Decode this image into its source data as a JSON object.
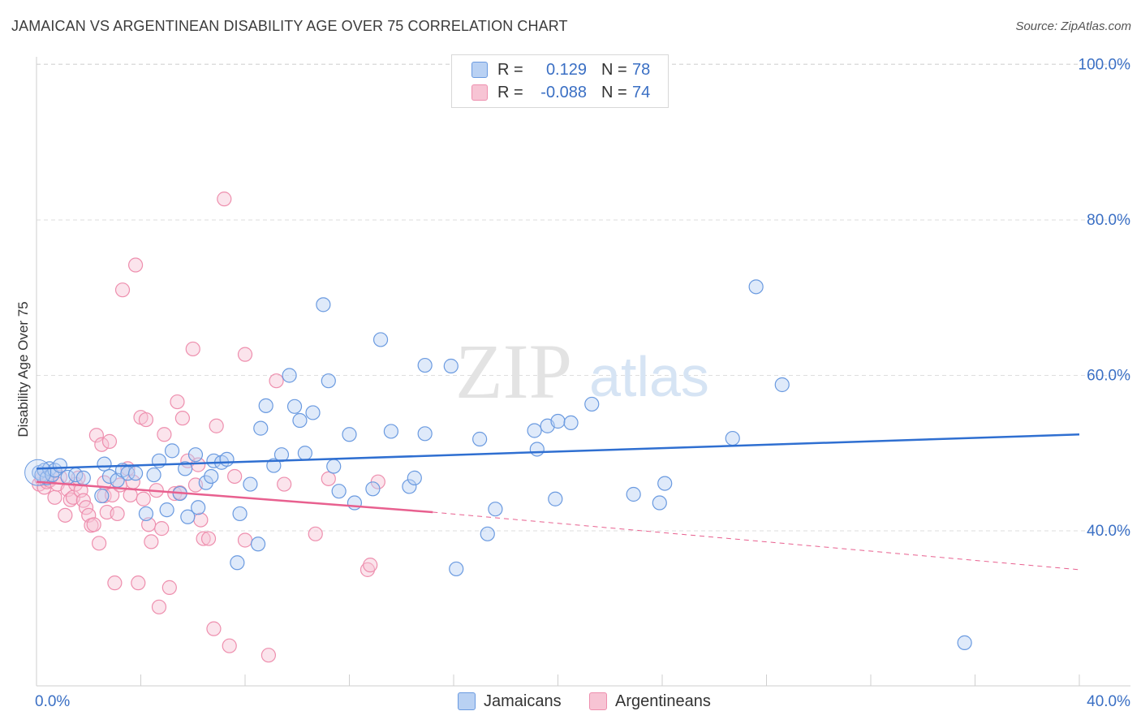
{
  "header": {
    "title": "JAMAICAN VS ARGENTINEAN DISABILITY AGE OVER 75 CORRELATION CHART",
    "source": "Source: ZipAtlas.com"
  },
  "watermark": {
    "zip": "ZIP",
    "atlas": "atlas"
  },
  "colors": {
    "blue_fill": "#b9d1f3",
    "blue_stroke": "#6a9ae0",
    "blue_line": "#2f6fd1",
    "pink_fill": "#f7c4d4",
    "pink_stroke": "#ee8fae",
    "pink_line": "#e8608f",
    "axis_text": "#3a6fc4",
    "grid": "#dedede"
  },
  "legend": {
    "rows": [
      {
        "label": "R =",
        "r": "0.129",
        "n_label": "N =",
        "n": "78"
      },
      {
        "label": "R =",
        "r": "-0.088",
        "n_label": "N =",
        "n": "74"
      }
    ]
  },
  "chart_data": {
    "type": "scatter",
    "title": "JAMAICAN VS ARGENTINEAN DISABILITY AGE OVER 75 CORRELATION CHART",
    "xlabel": "",
    "ylabel": "Disability Age Over 75",
    "xlim": [
      0,
      40
    ],
    "ylim": [
      22,
      103
    ],
    "x_tick_labels": [
      "0.0%",
      "40.0%"
    ],
    "y_ticks": [
      40,
      60,
      80,
      100
    ],
    "y_tick_labels": [
      "40.0%",
      "60.0%",
      "80.0%",
      "100.0%"
    ],
    "grid": true,
    "legend_position": "top-center",
    "series": [
      {
        "name": "Jamaicans",
        "color": "#6a9ae0",
        "trend": {
          "x": [
            0,
            40
          ],
          "y": [
            48.0,
            52.4
          ],
          "style": "solid"
        },
        "points": [
          [
            0.1,
            47.5
          ],
          [
            0.2,
            47.2
          ],
          [
            0.3,
            47.8
          ],
          [
            0.4,
            46.8
          ],
          [
            0.5,
            48.0
          ],
          [
            0.6,
            47.2
          ],
          [
            0.7,
            47.8
          ],
          [
            0.9,
            48.4
          ],
          [
            1.2,
            46.9
          ],
          [
            1.5,
            47.2
          ],
          [
            1.8,
            46.8
          ],
          [
            2.6,
            48.6
          ],
          [
            2.5,
            44.5
          ],
          [
            2.8,
            47.0
          ],
          [
            3.1,
            46.5
          ],
          [
            3.3,
            47.8
          ],
          [
            3.5,
            47.4
          ],
          [
            3.8,
            47.4
          ],
          [
            4.2,
            42.2
          ],
          [
            4.5,
            47.2
          ],
          [
            4.7,
            49.0
          ],
          [
            5.0,
            42.7
          ],
          [
            5.2,
            50.3
          ],
          [
            5.5,
            44.8
          ],
          [
            5.7,
            48.0
          ],
          [
            5.8,
            41.8
          ],
          [
            6.1,
            49.8
          ],
          [
            6.2,
            43.0
          ],
          [
            6.5,
            46.2
          ],
          [
            6.7,
            47.0
          ],
          [
            6.8,
            49.0
          ],
          [
            7.1,
            48.8
          ],
          [
            7.3,
            49.2
          ],
          [
            7.7,
            35.9
          ],
          [
            7.8,
            42.2
          ],
          [
            8.2,
            46.0
          ],
          [
            8.5,
            38.3
          ],
          [
            8.6,
            53.2
          ],
          [
            8.8,
            56.1
          ],
          [
            9.1,
            48.4
          ],
          [
            9.4,
            49.8
          ],
          [
            9.7,
            60.0
          ],
          [
            9.9,
            56.0
          ],
          [
            10.1,
            54.2
          ],
          [
            10.3,
            50.0
          ],
          [
            10.6,
            55.2
          ],
          [
            11.0,
            69.1
          ],
          [
            11.2,
            59.3
          ],
          [
            11.4,
            48.3
          ],
          [
            11.6,
            45.1
          ],
          [
            12.0,
            52.4
          ],
          [
            12.2,
            43.6
          ],
          [
            12.9,
            45.4
          ],
          [
            13.2,
            64.6
          ],
          [
            13.6,
            52.8
          ],
          [
            14.3,
            45.7
          ],
          [
            14.5,
            46.8
          ],
          [
            14.9,
            61.3
          ],
          [
            14.9,
            52.5
          ],
          [
            15.9,
            61.2
          ],
          [
            16.1,
            35.1
          ],
          [
            17.0,
            51.8
          ],
          [
            17.3,
            39.6
          ],
          [
            17.6,
            42.8
          ],
          [
            19.1,
            52.9
          ],
          [
            19.2,
            50.5
          ],
          [
            19.6,
            53.5
          ],
          [
            19.9,
            44.1
          ],
          [
            20.0,
            54.1
          ],
          [
            20.5,
            53.9
          ],
          [
            21.3,
            56.3
          ],
          [
            22.9,
            44.7
          ],
          [
            23.9,
            43.6
          ],
          [
            24.1,
            46.1
          ],
          [
            26.7,
            51.9
          ],
          [
            27.6,
            71.4
          ],
          [
            28.6,
            58.8
          ],
          [
            35.6,
            25.6
          ]
        ]
      },
      {
        "name": "Argentineans",
        "color": "#ee8fae",
        "trend": {
          "x": [
            0,
            15.2
          ],
          "y": [
            46.3,
            42.4
          ],
          "style": "solid",
          "dashed_to": [
            40,
            35.0
          ]
        },
        "points": [
          [
            0.1,
            46.0
          ],
          [
            0.2,
            46.7
          ],
          [
            0.3,
            45.6
          ],
          [
            0.4,
            46.3
          ],
          [
            0.5,
            46.5
          ],
          [
            0.6,
            47.2
          ],
          [
            0.7,
            44.3
          ],
          [
            0.8,
            46.0
          ],
          [
            0.9,
            46.9
          ],
          [
            1.1,
            42.0
          ],
          [
            1.2,
            45.3
          ],
          [
            1.3,
            44.0
          ],
          [
            1.4,
            44.3
          ],
          [
            1.5,
            46.0
          ],
          [
            1.6,
            46.8
          ],
          [
            1.7,
            45.2
          ],
          [
            1.8,
            43.9
          ],
          [
            1.9,
            43.0
          ],
          [
            2.0,
            42.0
          ],
          [
            2.1,
            40.7
          ],
          [
            2.2,
            40.8
          ],
          [
            2.3,
            52.3
          ],
          [
            2.4,
            38.4
          ],
          [
            2.5,
            51.1
          ],
          [
            2.6,
            44.5
          ],
          [
            2.7,
            42.4
          ],
          [
            2.8,
            51.5
          ],
          [
            2.9,
            44.6
          ],
          [
            3.0,
            33.3
          ],
          [
            3.1,
            42.2
          ],
          [
            3.2,
            45.9
          ],
          [
            3.3,
            71.0
          ],
          [
            3.5,
            48.0
          ],
          [
            3.6,
            44.6
          ],
          [
            3.7,
            46.3
          ],
          [
            3.8,
            74.2
          ],
          [
            3.9,
            33.3
          ],
          [
            4.0,
            54.6
          ],
          [
            4.1,
            44.1
          ],
          [
            4.2,
            54.3
          ],
          [
            4.3,
            40.8
          ],
          [
            4.4,
            38.6
          ],
          [
            4.6,
            45.2
          ],
          [
            4.7,
            30.2
          ],
          [
            4.8,
            40.3
          ],
          [
            4.9,
            52.4
          ],
          [
            5.1,
            32.7
          ],
          [
            5.3,
            44.8
          ],
          [
            5.4,
            56.6
          ],
          [
            5.5,
            44.9
          ],
          [
            5.6,
            54.5
          ],
          [
            5.8,
            49.0
          ],
          [
            6.0,
            63.4
          ],
          [
            6.1,
            45.9
          ],
          [
            6.2,
            48.5
          ],
          [
            6.3,
            41.4
          ],
          [
            6.4,
            39.0
          ],
          [
            6.6,
            39.0
          ],
          [
            6.8,
            27.4
          ],
          [
            6.9,
            53.5
          ],
          [
            7.2,
            82.7
          ],
          [
            7.4,
            25.2
          ],
          [
            7.6,
            47.0
          ],
          [
            8.0,
            62.7
          ],
          [
            8.0,
            38.8
          ],
          [
            8.9,
            24.0
          ],
          [
            9.2,
            59.3
          ],
          [
            9.5,
            46.0
          ],
          [
            10.7,
            39.6
          ],
          [
            12.7,
            35.0
          ],
          [
            12.8,
            35.6
          ],
          [
            11.2,
            46.7
          ],
          [
            13.1,
            46.3
          ],
          [
            2.6,
            46.2
          ]
        ]
      }
    ]
  },
  "bottom_legend": {
    "blue_label": "Jamaicans",
    "pink_label": "Argentineans"
  }
}
